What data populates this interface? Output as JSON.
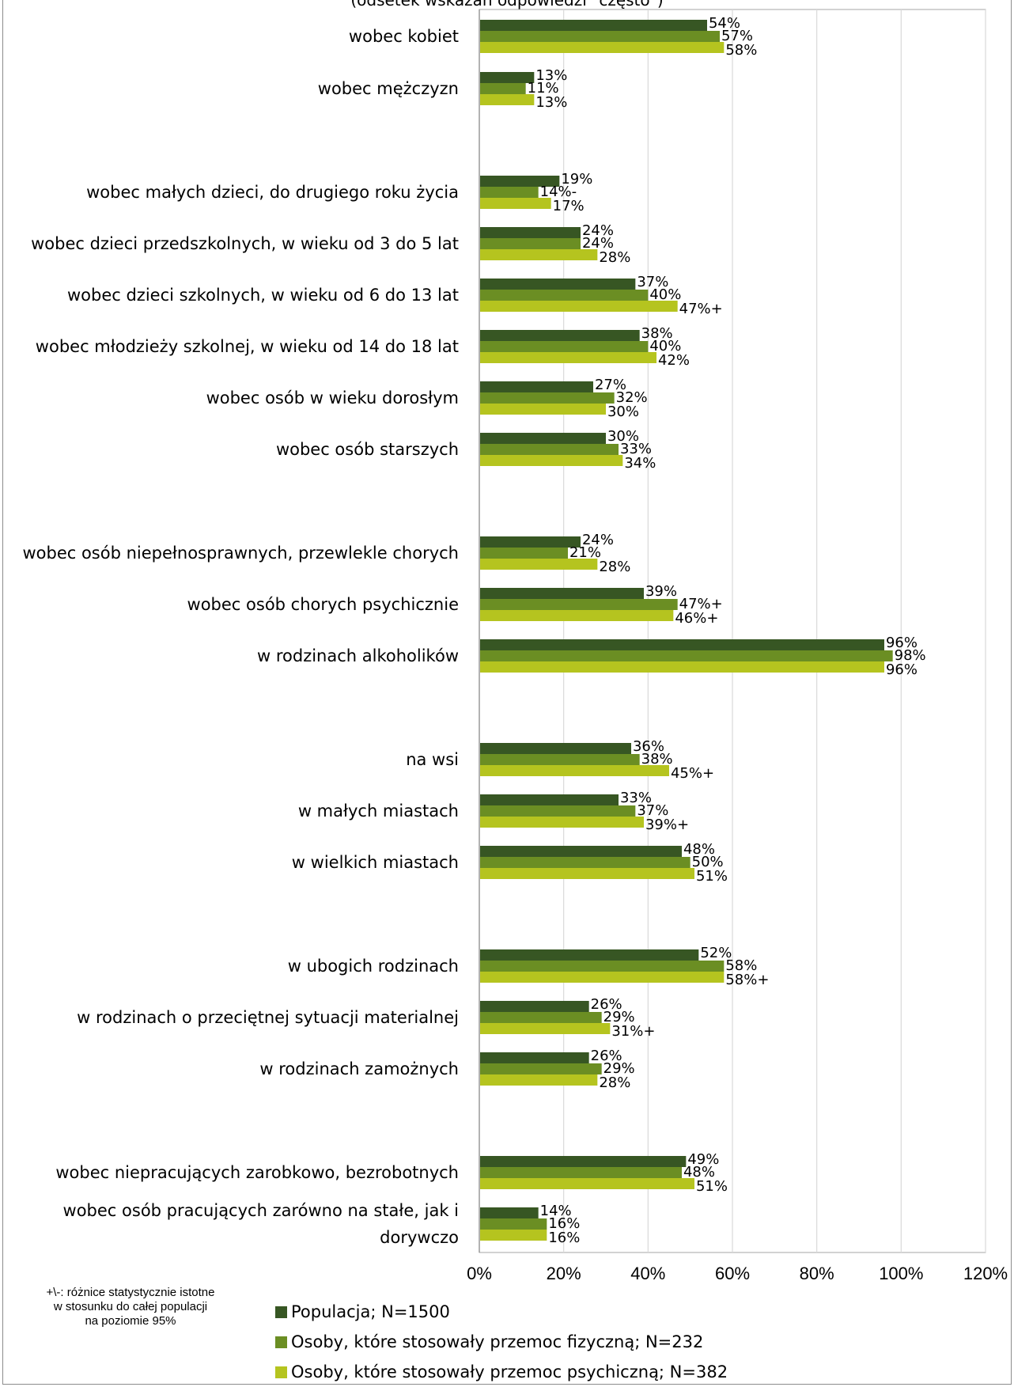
{
  "chart_data": {
    "type": "bar",
    "orientation": "horizontal",
    "title": "(odsetek wskazań odpowiedzi \"często\")",
    "xlim": [
      0,
      120
    ],
    "x_ticks": [
      "0%",
      "20%",
      "40%",
      "60%",
      "80%",
      "100%",
      "120%"
    ],
    "grid": true,
    "legend_position": "bottom",
    "colors": [
      "#375623",
      "#6b8e23",
      "#b5c41f"
    ],
    "series_names": [
      "Populacja; N=1500",
      "Osoby, które stosowały przemoc fizyczną; N=232",
      "Osoby, które stosowały przemoc psychiczną; N=382"
    ],
    "categories": [
      {
        "lines": [
          "wobec kobiet"
        ],
        "values": [
          54,
          57,
          58
        ],
        "labels": [
          "54%",
          "57%",
          "58%"
        ]
      },
      {
        "lines": [
          "wobec mężczyzn"
        ],
        "values": [
          13,
          11,
          13
        ],
        "labels": [
          "13%",
          "11%",
          "13%"
        ]
      },
      {
        "lines": [
          "wobec małych dzieci, do drugiego roku życia"
        ],
        "values": [
          19,
          14,
          17
        ],
        "labels": [
          "19%",
          "14%-",
          "17%"
        ]
      },
      {
        "lines": [
          "wobec dzieci przedszkolnych, w wieku od 3 do 5 lat"
        ],
        "values": [
          24,
          24,
          28
        ],
        "labels": [
          "24%",
          "24%",
          "28%"
        ]
      },
      {
        "lines": [
          "wobec dzieci szkolnych, w wieku od 6 do 13 lat"
        ],
        "values": [
          37,
          40,
          47
        ],
        "labels": [
          "37%",
          "40%",
          "47%+"
        ]
      },
      {
        "lines": [
          "wobec młodzieży szkolnej, w wieku od 14 do 18 lat"
        ],
        "values": [
          38,
          40,
          42
        ],
        "labels": [
          "38%",
          "40%",
          "42%"
        ]
      },
      {
        "lines": [
          "wobec osób w wieku dorosłym"
        ],
        "values": [
          27,
          32,
          30
        ],
        "labels": [
          "27%",
          "32%",
          "30%"
        ]
      },
      {
        "lines": [
          "wobec osób starszych"
        ],
        "values": [
          30,
          33,
          34
        ],
        "labels": [
          "30%",
          "33%",
          "34%"
        ]
      },
      {
        "lines": [
          "wobec osób niepełnosprawnych, przewlekle chorych"
        ],
        "values": [
          24,
          21,
          28
        ],
        "labels": [
          "24%",
          "21%",
          "28%"
        ]
      },
      {
        "lines": [
          "wobec osób chorych psychicznie"
        ],
        "values": [
          39,
          47,
          46
        ],
        "labels": [
          "39%",
          "47%+",
          "46%+"
        ]
      },
      {
        "lines": [
          "w rodzinach alkoholików"
        ],
        "values": [
          96,
          98,
          96
        ],
        "labels": [
          "96%",
          "98%",
          "96%"
        ]
      },
      {
        "lines": [
          "na wsi"
        ],
        "values": [
          36,
          38,
          45
        ],
        "labels": [
          "36%",
          "38%",
          "45%+"
        ]
      },
      {
        "lines": [
          "w małych miastach"
        ],
        "values": [
          33,
          37,
          39
        ],
        "labels": [
          "33%",
          "37%",
          "39%+"
        ]
      },
      {
        "lines": [
          "w wielkich miastach"
        ],
        "values": [
          48,
          50,
          51
        ],
        "labels": [
          "48%",
          "50%",
          "51%"
        ]
      },
      {
        "lines": [
          "w ubogich rodzinach"
        ],
        "values": [
          52,
          58,
          58
        ],
        "labels": [
          "52%",
          "58%",
          "58%+"
        ]
      },
      {
        "lines": [
          "w rodzinach o przeciętnej sytuacji materialnej"
        ],
        "values": [
          26,
          29,
          31
        ],
        "labels": [
          "26%",
          "29%",
          "31%+"
        ]
      },
      {
        "lines": [
          "w rodzinach zamożnych"
        ],
        "values": [
          26,
          29,
          28
        ],
        "labels": [
          "26%",
          "29%",
          "28%"
        ]
      },
      {
        "lines": [
          "wobec niepracujących zarobkowo, bezrobotnych"
        ],
        "values": [
          49,
          48,
          51
        ],
        "labels": [
          "49%",
          "48%",
          "51%"
        ]
      },
      {
        "lines": [
          "wobec osób pracujących zarówno na stałe, jak i",
          "dorywczo"
        ],
        "values": [
          14,
          16,
          16
        ],
        "labels": [
          "14%",
          "16%",
          "16%"
        ]
      }
    ]
  },
  "footnote": [
    "+\\-: różnice statystycznie istotne",
    "w stosunku do całej populacji",
    "na poziomie 95%"
  ]
}
